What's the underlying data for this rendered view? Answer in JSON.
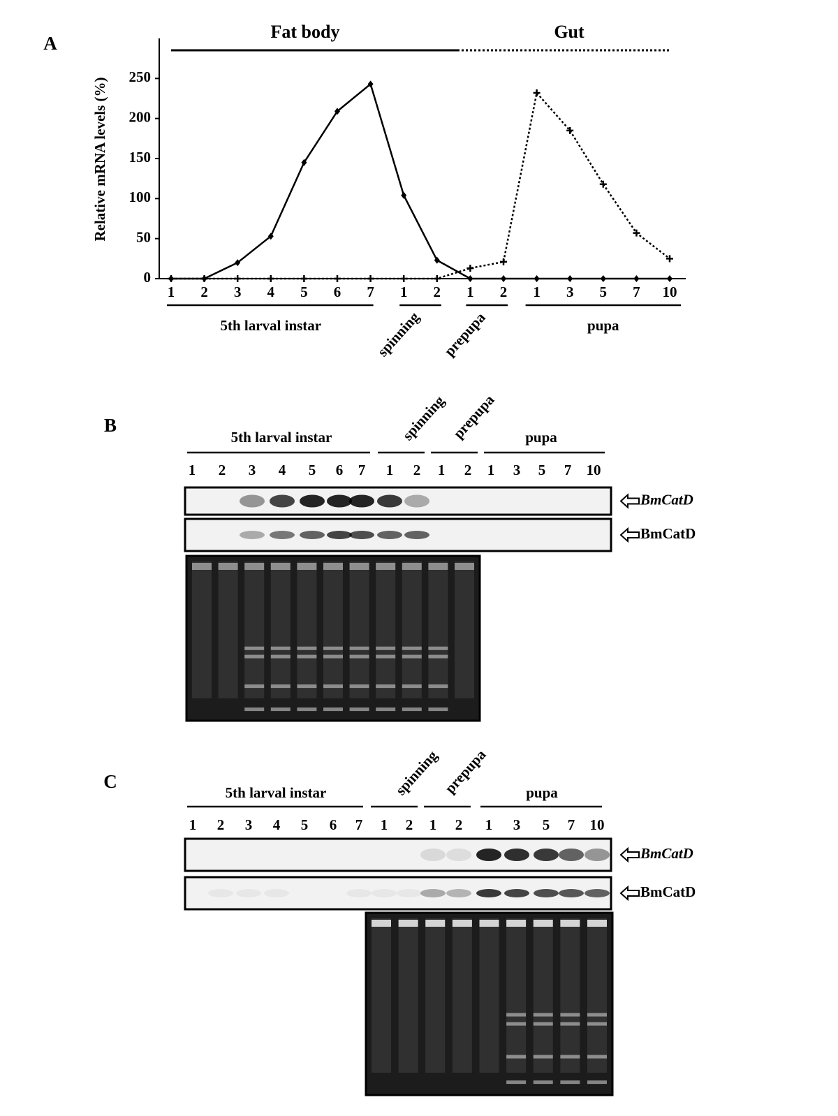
{
  "chart_data": {
    "type": "line",
    "panel": "A",
    "y_label": "Relative mRNA levels (%)",
    "groups": [
      {
        "name": "5th larval instar",
        "categories": [
          "1",
          "2",
          "3",
          "4",
          "5",
          "6",
          "7"
        ]
      },
      {
        "name": "spinning",
        "categories": [
          "1",
          "2"
        ]
      },
      {
        "name": "prepupa",
        "categories": [
          "1",
          "2"
        ]
      },
      {
        "name": "pupa",
        "categories": [
          "1",
          "3",
          "5",
          "7",
          "10"
        ]
      }
    ],
    "series": [
      {
        "name": "Fat body",
        "color": "#000000",
        "style": "solid",
        "values": [
          0,
          0,
          20,
          53,
          145,
          209,
          243,
          104,
          23,
          0,
          0,
          0,
          0,
          0,
          0,
          0
        ]
      },
      {
        "name": "Gut",
        "color": "#000000",
        "style": "dotted",
        "values": [
          0,
          0,
          0,
          0,
          0,
          0,
          0,
          0,
          0,
          13,
          21,
          232,
          185,
          118,
          57,
          25
        ]
      }
    ],
    "ylim": [
      0,
      300
    ],
    "yticks": [
      0,
      50,
      100,
      150,
      200,
      250
    ],
    "grid": false
  },
  "panels": [
    {
      "label": "B",
      "groups": [
        {
          "name": "5th larval instar",
          "lanes": [
            "1",
            "2",
            "3",
            "4",
            "5",
            "6",
            "7"
          ]
        },
        {
          "name": "spinning",
          "lanes": [
            "1",
            "2"
          ]
        },
        {
          "name": "prepupa",
          "lanes": [
            "1",
            "2"
          ]
        },
        {
          "name": "pupa",
          "lanes": [
            "1",
            "3",
            "5",
            "7",
            "10"
          ]
        }
      ],
      "blots": [
        "BmCatD",
        "BmCatD"
      ]
    },
    {
      "label": "C",
      "groups": [
        {
          "name": "5th larval instar",
          "lanes": [
            "1",
            "2",
            "3",
            "4",
            "5",
            "6",
            "7"
          ]
        },
        {
          "name": "spinning",
          "lanes": [
            "1",
            "2"
          ]
        },
        {
          "name": "prepupa",
          "lanes": [
            "1",
            "2"
          ]
        },
        {
          "name": "pupa",
          "lanes": [
            "1",
            "3",
            "5",
            "7",
            "10"
          ]
        }
      ],
      "blots": [
        "BmCatD",
        "BmCatD"
      ]
    }
  ]
}
